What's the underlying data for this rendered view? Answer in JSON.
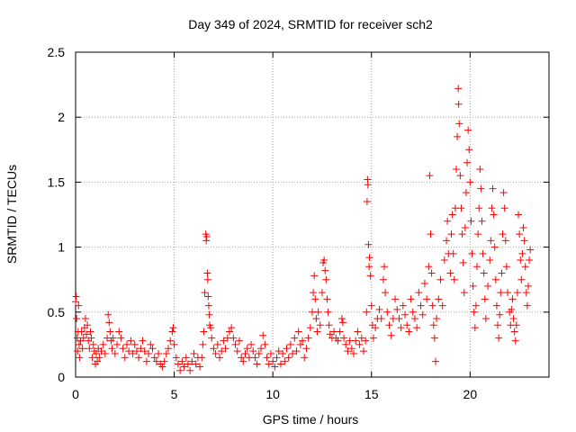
{
  "chart_data": {
    "type": "scatter",
    "title": "Day 349 of 2024, SRMTID for receiver sch2",
    "xlabel": "GPS time / hours",
    "ylabel": "SRMTID / TECUs",
    "xlim": [
      0,
      24
    ],
    "ylim": [
      0,
      2.5
    ],
    "xticks": [
      0,
      5,
      10,
      15,
      20
    ],
    "xtick_labels": [
      "0",
      "5",
      "10",
      "15",
      "20"
    ],
    "yticks": [
      0,
      0.5,
      1,
      1.5,
      2,
      2.5
    ],
    "ytick_labels": [
      "0",
      "0.5",
      "1",
      "1.5",
      "2",
      "2.5"
    ],
    "grid": true,
    "marker": "+",
    "color": "#ff0000",
    "series": [
      {
        "name": "sch2",
        "points": [
          [
            0.0,
            0.58
          ],
          [
            0.03,
            0.62
          ],
          [
            0.05,
            0.45
          ],
          [
            0.08,
            0.3
          ],
          [
            0.1,
            0.2
          ],
          [
            0.13,
            0.35
          ],
          [
            0.15,
            0.55
          ],
          [
            0.18,
            0.25
          ],
          [
            0.2,
            0.15
          ],
          [
            0.25,
            0.28
          ],
          [
            0.3,
            0.35
          ],
          [
            0.35,
            0.22
          ],
          [
            0.4,
            0.3
          ],
          [
            0.45,
            0.38
          ],
          [
            0.5,
            0.45
          ],
          [
            0.55,
            0.33
          ],
          [
            0.6,
            0.4
          ],
          [
            0.65,
            0.28
          ],
          [
            0.7,
            0.22
          ],
          [
            0.75,
            0.35
          ],
          [
            0.8,
            0.3
          ],
          [
            0.85,
            0.15
          ],
          [
            0.9,
            0.25
          ],
          [
            0.95,
            0.2
          ],
          [
            1.0,
            0.1
          ],
          [
            1.05,
            0.18
          ],
          [
            1.1,
            0.12
          ],
          [
            1.15,
            0.22
          ],
          [
            1.2,
            0.15
          ],
          [
            1.3,
            0.2
          ],
          [
            1.4,
            0.25
          ],
          [
            1.5,
            0.18
          ],
          [
            1.6,
            0.3
          ],
          [
            1.65,
            0.48
          ],
          [
            1.7,
            0.42
          ],
          [
            1.75,
            0.35
          ],
          [
            1.8,
            0.28
          ],
          [
            1.85,
            0.22
          ],
          [
            1.9,
            0.3
          ],
          [
            2.0,
            0.18
          ],
          [
            2.1,
            0.25
          ],
          [
            2.2,
            0.35
          ],
          [
            2.3,
            0.3
          ],
          [
            2.4,
            0.22
          ],
          [
            2.5,
            0.15
          ],
          [
            2.6,
            0.25
          ],
          [
            2.7,
            0.2
          ],
          [
            2.8,
            0.28
          ],
          [
            2.9,
            0.18
          ],
          [
            3.0,
            0.25
          ],
          [
            3.1,
            0.2
          ],
          [
            3.2,
            0.15
          ],
          [
            3.3,
            0.22
          ],
          [
            3.4,
            0.28
          ],
          [
            3.5,
            0.2
          ],
          [
            3.6,
            0.12
          ],
          [
            3.7,
            0.18
          ],
          [
            3.8,
            0.25
          ],
          [
            3.9,
            0.22
          ],
          [
            4.0,
            0.15
          ],
          [
            4.1,
            0.12
          ],
          [
            4.2,
            0.18
          ],
          [
            4.3,
            0.1
          ],
          [
            4.4,
            0.08
          ],
          [
            4.5,
            0.12
          ],
          [
            4.6,
            0.18
          ],
          [
            4.7,
            0.22
          ],
          [
            4.8,
            0.28
          ],
          [
            4.9,
            0.35
          ],
          [
            4.95,
            0.38
          ],
          [
            5.0,
            0.25
          ],
          [
            5.1,
            0.15
          ],
          [
            5.2,
            0.1
          ],
          [
            5.3,
            0.05
          ],
          [
            5.4,
            0.12
          ],
          [
            5.5,
            0.08
          ],
          [
            5.6,
            0.15
          ],
          [
            5.7,
            0.1
          ],
          [
            5.8,
            0.05
          ],
          [
            5.9,
            0.12
          ],
          [
            6.0,
            0.18
          ],
          [
            6.1,
            0.1
          ],
          [
            6.2,
            0.15
          ],
          [
            6.3,
            0.08
          ],
          [
            6.4,
            0.15
          ],
          [
            6.45,
            0.25
          ],
          [
            6.5,
            0.35
          ],
          [
            6.55,
            0.65
          ],
          [
            6.6,
            1.1
          ],
          [
            6.62,
            1.05
          ],
          [
            6.65,
            1.08
          ],
          [
            6.68,
            0.8
          ],
          [
            6.7,
            0.75
          ],
          [
            6.72,
            0.62
          ],
          [
            6.75,
            0.55
          ],
          [
            6.78,
            0.48
          ],
          [
            6.8,
            0.4
          ],
          [
            6.85,
            0.38
          ],
          [
            6.9,
            0.3
          ],
          [
            7.0,
            0.22
          ],
          [
            7.1,
            0.18
          ],
          [
            7.2,
            0.25
          ],
          [
            7.3,
            0.15
          ],
          [
            7.4,
            0.2
          ],
          [
            7.5,
            0.28
          ],
          [
            7.6,
            0.22
          ],
          [
            7.7,
            0.3
          ],
          [
            7.8,
            0.35
          ],
          [
            7.9,
            0.38
          ],
          [
            8.0,
            0.3
          ],
          [
            8.1,
            0.25
          ],
          [
            8.2,
            0.2
          ],
          [
            8.3,
            0.28
          ],
          [
            8.4,
            0.15
          ],
          [
            8.5,
            0.12
          ],
          [
            8.6,
            0.18
          ],
          [
            8.7,
            0.22
          ],
          [
            8.8,
            0.15
          ],
          [
            8.9,
            0.25
          ],
          [
            9.0,
            0.2
          ],
          [
            9.1,
            0.15
          ],
          [
            9.2,
            0.1
          ],
          [
            9.3,
            0.18
          ],
          [
            9.4,
            0.22
          ],
          [
            9.5,
            0.32
          ],
          [
            9.6,
            0.25
          ],
          [
            9.7,
            0.15
          ],
          [
            9.8,
            0.1
          ],
          [
            9.9,
            0.18
          ],
          [
            10.0,
            0.12
          ],
          [
            10.1,
            0.08
          ],
          [
            10.2,
            0.15
          ],
          [
            10.3,
            0.2
          ],
          [
            10.4,
            0.1
          ],
          [
            10.5,
            0.18
          ],
          [
            10.6,
            0.12
          ],
          [
            10.7,
            0.22
          ],
          [
            10.8,
            0.15
          ],
          [
            10.9,
            0.25
          ],
          [
            11.0,
            0.18
          ],
          [
            11.1,
            0.3
          ],
          [
            11.2,
            0.2
          ],
          [
            11.3,
            0.35
          ],
          [
            11.4,
            0.25
          ],
          [
            11.5,
            0.28
          ],
          [
            11.6,
            0.15
          ],
          [
            11.7,
            0.22
          ],
          [
            11.8,
            0.3
          ],
          [
            11.9,
            0.38
          ],
          [
            12.0,
            0.5
          ],
          [
            12.05,
            0.65
          ],
          [
            12.1,
            0.78
          ],
          [
            12.15,
            0.6
          ],
          [
            12.2,
            0.45
          ],
          [
            12.25,
            0.35
          ],
          [
            12.3,
            0.5
          ],
          [
            12.4,
            0.4
          ],
          [
            12.5,
            0.65
          ],
          [
            12.55,
            0.88
          ],
          [
            12.6,
            0.9
          ],
          [
            12.65,
            0.82
          ],
          [
            12.7,
            0.75
          ],
          [
            12.75,
            0.6
          ],
          [
            12.8,
            0.5
          ],
          [
            12.85,
            0.4
          ],
          [
            12.9,
            0.33
          ],
          [
            13.0,
            0.3
          ],
          [
            13.1,
            0.35
          ],
          [
            13.2,
            0.3
          ],
          [
            13.3,
            0.28
          ],
          [
            13.4,
            0.35
          ],
          [
            13.5,
            0.45
          ],
          [
            13.55,
            0.42
          ],
          [
            13.6,
            0.3
          ],
          [
            13.7,
            0.25
          ],
          [
            13.8,
            0.2
          ],
          [
            13.9,
            0.28
          ],
          [
            14.0,
            0.22
          ],
          [
            14.1,
            0.18
          ],
          [
            14.2,
            0.28
          ],
          [
            14.3,
            0.35
          ],
          [
            14.4,
            0.25
          ],
          [
            14.5,
            0.3
          ],
          [
            14.6,
            0.2
          ],
          [
            14.7,
            0.28
          ],
          [
            14.75,
            0.5
          ],
          [
            14.78,
            1.35
          ],
          [
            14.8,
            1.52
          ],
          [
            14.82,
            1.48
          ],
          [
            14.85,
            1.02
          ],
          [
            14.88,
            0.85
          ],
          [
            14.9,
            0.92
          ],
          [
            14.95,
            0.78
          ],
          [
            15.0,
            0.55
          ],
          [
            15.05,
            0.4
          ],
          [
            15.1,
            0.3
          ],
          [
            15.2,
            0.38
          ],
          [
            15.3,
            0.45
          ],
          [
            15.4,
            0.52
          ],
          [
            15.5,
            0.45
          ],
          [
            15.6,
            0.75
          ],
          [
            15.65,
            0.85
          ],
          [
            15.7,
            0.65
          ],
          [
            15.8,
            0.5
          ],
          [
            15.9,
            0.4
          ],
          [
            16.0,
            0.32
          ],
          [
            16.1,
            0.45
          ],
          [
            16.2,
            0.6
          ],
          [
            16.3,
            0.52
          ],
          [
            16.4,
            0.45
          ],
          [
            16.5,
            0.38
          ],
          [
            16.6,
            0.55
          ],
          [
            16.7,
            0.48
          ],
          [
            16.8,
            0.4
          ],
          [
            16.9,
            0.35
          ],
          [
            17.0,
            0.6
          ],
          [
            17.1,
            0.5
          ],
          [
            17.2,
            0.45
          ],
          [
            17.3,
            0.38
          ],
          [
            17.4,
            0.65
          ],
          [
            17.5,
            0.55
          ],
          [
            17.6,
            0.48
          ],
          [
            17.7,
            0.72
          ],
          [
            17.8,
            0.6
          ],
          [
            17.9,
            0.85
          ],
          [
            17.95,
            1.55
          ],
          [
            18.0,
            1.1
          ],
          [
            18.05,
            0.8
          ],
          [
            18.1,
            0.55
          ],
          [
            18.15,
            0.4
          ],
          [
            18.2,
            0.3
          ],
          [
            18.25,
            0.12
          ],
          [
            18.3,
            0.45
          ],
          [
            18.4,
            0.6
          ],
          [
            18.5,
            0.75
          ],
          [
            18.6,
            0.55
          ],
          [
            18.7,
            0.9
          ],
          [
            18.8,
            1.05
          ],
          [
            18.85,
            1.2
          ],
          [
            18.9,
            0.95
          ],
          [
            19.0,
            0.8
          ],
          [
            19.05,
            1.1
          ],
          [
            19.1,
            1.25
          ],
          [
            19.15,
            0.95
          ],
          [
            19.2,
            0.75
          ],
          [
            19.25,
            1.3
          ],
          [
            19.3,
            1.6
          ],
          [
            19.35,
            1.85
          ],
          [
            19.4,
            2.22
          ],
          [
            19.42,
            2.1
          ],
          [
            19.45,
            1.95
          ],
          [
            19.5,
            1.55
          ],
          [
            19.55,
            1.3
          ],
          [
            19.6,
            1.1
          ],
          [
            19.65,
            0.88
          ],
          [
            19.7,
            0.65
          ],
          [
            19.75,
            1.15
          ],
          [
            19.8,
            1.42
          ],
          [
            19.85,
            1.65
          ],
          [
            19.9,
            1.9
          ],
          [
            19.95,
            1.75
          ],
          [
            20.0,
            1.5
          ],
          [
            20.05,
            1.2
          ],
          [
            20.1,
            0.95
          ],
          [
            20.15,
            0.7
          ],
          [
            20.2,
            0.5
          ],
          [
            20.25,
            0.38
          ],
          [
            20.3,
            0.55
          ],
          [
            20.35,
            0.85
          ],
          [
            20.4,
            1.1
          ],
          [
            20.45,
            1.3
          ],
          [
            20.5,
            1.6
          ],
          [
            20.55,
            1.45
          ],
          [
            20.6,
            1.2
          ],
          [
            20.65,
            0.95
          ],
          [
            20.7,
            0.8
          ],
          [
            20.75,
            0.6
          ],
          [
            20.8,
            0.45
          ],
          [
            20.9,
            0.7
          ],
          [
            21.0,
            0.9
          ],
          [
            21.05,
            1.05
          ],
          [
            21.1,
            1.3
          ],
          [
            21.15,
            1.45
          ],
          [
            21.2,
            1.25
          ],
          [
            21.25,
            1.0
          ],
          [
            21.3,
            0.75
          ],
          [
            21.35,
            0.55
          ],
          [
            21.4,
            0.4
          ],
          [
            21.45,
            0.3
          ],
          [
            21.5,
            0.48
          ],
          [
            21.55,
            0.65
          ],
          [
            21.6,
            0.8
          ],
          [
            21.65,
            1.1
          ],
          [
            21.7,
            1.42
          ],
          [
            21.75,
            1.3
          ],
          [
            21.8,
            1.05
          ],
          [
            21.85,
            0.85
          ],
          [
            21.9,
            0.65
          ],
          [
            22.0,
            0.5
          ],
          [
            22.05,
            0.4
          ],
          [
            22.1,
            0.52
          ],
          [
            22.15,
            0.6
          ],
          [
            22.2,
            0.45
          ],
          [
            22.25,
            0.35
          ],
          [
            22.3,
            0.28
          ],
          [
            22.35,
            0.4
          ],
          [
            22.4,
            0.65
          ],
          [
            22.45,
            1.25
          ],
          [
            22.5,
            1.1
          ],
          [
            22.55,
            0.9
          ],
          [
            22.6,
            0.75
          ],
          [
            22.65,
            0.95
          ],
          [
            22.7,
            1.15
          ],
          [
            22.75,
            1.05
          ],
          [
            22.8,
            0.85
          ],
          [
            22.85,
            0.65
          ],
          [
            22.9,
            0.55
          ],
          [
            22.95,
            0.7
          ],
          [
            23.0,
            0.9
          ],
          [
            23.05,
            0.98
          ]
        ]
      }
    ]
  }
}
